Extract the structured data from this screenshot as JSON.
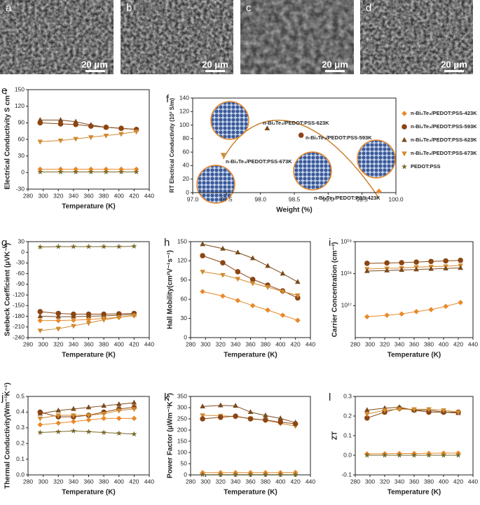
{
  "images": [
    {
      "label": "a",
      "scale": "20 μm"
    },
    {
      "label": "b",
      "scale": "20 μm"
    },
    {
      "label": "c",
      "scale": "20 μm"
    },
    {
      "label": "d",
      "scale": "20 μm"
    }
  ],
  "chart_data": [
    {
      "type": "line",
      "panel": "e",
      "xlabel": "Temperature (K)",
      "ylabel": "Electrical Conductivity S cm⁻¹",
      "xlim": [
        280,
        440
      ],
      "xticks": [
        280,
        300,
        320,
        340,
        360,
        380,
        400,
        420,
        440
      ],
      "ylim": [
        -30,
        150
      ],
      "yticks": [
        -30,
        0,
        30,
        60,
        90,
        120,
        150
      ],
      "series": [
        {
          "color": "#7a4a1c",
          "marker": "triangle",
          "x": [
            296,
            323,
            343,
            363,
            383,
            403,
            423
          ],
          "values": [
            95,
            95,
            92,
            86,
            82,
            80,
            78
          ]
        },
        {
          "color": "#8b4513",
          "marker": "circle",
          "x": [
            296,
            323,
            343,
            363,
            383,
            403,
            423
          ],
          "values": [
            90,
            88,
            87,
            84,
            82,
            80,
            78
          ]
        },
        {
          "color": "#d08a30",
          "marker": "tri-down",
          "x": [
            296,
            323,
            343,
            363,
            383,
            403,
            423
          ],
          "values": [
            56,
            58,
            61,
            64,
            67,
            70,
            74
          ]
        },
        {
          "color": "#e8892a",
          "marker": "diamond",
          "x": [
            296,
            323,
            343,
            363,
            383,
            403,
            423
          ],
          "values": [
            6,
            6,
            6,
            6,
            6,
            6,
            6
          ]
        },
        {
          "color": "#7a6a2a",
          "marker": "star",
          "x": [
            296,
            323,
            343,
            363,
            383,
            403,
            423
          ],
          "values": [
            1,
            1,
            1,
            1,
            1,
            1,
            1
          ]
        }
      ]
    },
    {
      "type": "scatter",
      "panel": "f",
      "xlabel": "Weight (%)",
      "ylabel": "RT Electrical Conductivity (10² S/m)",
      "xlim": [
        97,
        100
      ],
      "xticks": [
        {
          "value": 97,
          "label": "97.0"
        },
        {
          "value": 97.5,
          "label": "97.5"
        },
        {
          "value": 98,
          "label": "98.0"
        },
        {
          "value": 98.5,
          "label": "98.5"
        },
        {
          "value": 99,
          "label": "99.0"
        },
        {
          "value": 99.5,
          "label": "99.5"
        },
        {
          "value": 100,
          "label": "100.0"
        }
      ],
      "ylim": [
        0,
        140
      ],
      "yticks": [
        0,
        20,
        40,
        60,
        80,
        100,
        120,
        140
      ],
      "legend": "right",
      "annotations": [
        "n-Bi₂Te₃/PEDOT:PSS-623K",
        "n-Bi₂Te₃/PEDOT:PSS-593K",
        "n-Bi₂Te₃/PEDOT:PSS-673K",
        "n-Bi₂Te₃/PEDOT:PSS-423K"
      ],
      "series": [
        {
          "name": "n-Bi₂Te₃/PEDOT:PSS-423K",
          "color": "#e8892a",
          "marker": "diamond",
          "x": [
            99.75
          ],
          "values": [
            2
          ]
        },
        {
          "name": "n-Bi₂Te₃/PEDOT:PSS-593K",
          "color": "#8b4513",
          "marker": "circle",
          "x": [
            98.6
          ],
          "values": [
            85
          ]
        },
        {
          "name": "n-Bi₂Te₃/PEDOT:PSS-623K",
          "color": "#7a4a1c",
          "marker": "triangle",
          "x": [
            98.1
          ],
          "values": [
            95
          ]
        },
        {
          "name": "n-Bi₂Te₃/PEDOT:PSS-673K",
          "color": "#d08a30",
          "marker": "tri-down",
          "x": [
            97.45
          ],
          "values": [
            56
          ]
        },
        {
          "name": "PEDOT:PSS",
          "color": "#7a6a2a",
          "marker": "star",
          "x": [],
          "values": []
        }
      ]
    },
    {
      "type": "line",
      "panel": "g",
      "xlabel": "Temperature (K)",
      "ylabel": "Seebeck Coefficient (μVK⁻¹)",
      "xlim": [
        280,
        440
      ],
      "xticks": [
        280,
        300,
        320,
        340,
        360,
        380,
        400,
        420,
        440
      ],
      "ylim": [
        -240,
        30
      ],
      "yticks": [
        -240,
        -210,
        -180,
        -150,
        -120,
        -90,
        -60,
        -30,
        0,
        30
      ],
      "series": [
        {
          "color": "#7a6a2a",
          "marker": "star",
          "x": [
            296,
            320,
            340,
            360,
            380,
            400,
            420
          ],
          "values": [
            15,
            16,
            16,
            16,
            16,
            16,
            17
          ]
        },
        {
          "color": "#8b4513",
          "marker": "circle",
          "x": [
            296,
            320,
            340,
            360,
            380,
            400,
            420
          ],
          "values": [
            -167,
            -172,
            -174,
            -174,
            -174,
            -173,
            -172
          ]
        },
        {
          "color": "#7a4a1c",
          "marker": "triangle",
          "x": [
            296,
            320,
            340,
            360,
            380,
            400,
            420
          ],
          "values": [
            -180,
            -181,
            -181,
            -180,
            -179,
            -177,
            -175
          ]
        },
        {
          "color": "#e8892a",
          "marker": "diamond",
          "x": [
            296,
            320,
            340,
            360,
            380,
            400,
            420
          ],
          "values": [
            -192,
            -192,
            -191,
            -189,
            -186,
            -183,
            -178
          ]
        },
        {
          "color": "#d08a30",
          "marker": "tri-down",
          "x": [
            296,
            320,
            340,
            360,
            380,
            400,
            420
          ],
          "values": [
            -220,
            -215,
            -207,
            -199,
            -190,
            -183,
            -178
          ]
        }
      ]
    },
    {
      "type": "line",
      "panel": "h",
      "xlabel": "Temperature (K)",
      "ylabel": "Hall Mobility(cm²V⁻¹s⁻¹)",
      "xlim": [
        280,
        440
      ],
      "xticks": [
        280,
        300,
        320,
        340,
        360,
        380,
        400,
        420,
        440
      ],
      "ylim": [
        0,
        150
      ],
      "yticks": [
        0,
        30,
        60,
        90,
        120,
        150
      ],
      "series": [
        {
          "color": "#7a4a1c",
          "marker": "triangle",
          "x": [
            296,
            323,
            343,
            363,
            383,
            403,
            423
          ],
          "values": [
            146,
            139,
            133,
            124,
            112,
            100,
            87
          ]
        },
        {
          "color": "#8b4513",
          "marker": "circle",
          "x": [
            296,
            323,
            343,
            363,
            383,
            403,
            423
          ],
          "values": [
            128,
            117,
            103,
            91,
            82,
            73,
            62
          ]
        },
        {
          "color": "#d08a30",
          "marker": "tri-down",
          "x": [
            296,
            323,
            343,
            363,
            383,
            403,
            423
          ],
          "values": [
            103,
            98,
            92,
            85,
            79,
            72,
            66
          ]
        },
        {
          "color": "#e8892a",
          "marker": "diamond",
          "x": [
            296,
            323,
            343,
            363,
            383,
            403,
            423
          ],
          "values": [
            72,
            65,
            58,
            50,
            43,
            35,
            27
          ]
        }
      ]
    },
    {
      "type": "line",
      "panel": "i",
      "xlabel": "Temperature (K)",
      "ylabel": "Carrier Concentration (cm⁻³)",
      "xlim": [
        280,
        440
      ],
      "xticks": [
        280,
        300,
        320,
        340,
        360,
        380,
        400,
        420,
        440
      ],
      "ylim": [
        1e+16,
        1e+19
      ],
      "log_y": true,
      "yticks": [
        {
          "value": 1e+17,
          "label": "10¹⁷"
        },
        {
          "value": 1e+18,
          "label": "10¹⁸"
        },
        {
          "value": 1e+19,
          "label": "10¹⁹"
        }
      ],
      "series": [
        {
          "color": "#8b4513",
          "marker": "circle",
          "x": [
            296,
            323,
            343,
            363,
            383,
            403,
            423
          ],
          "values": [
            2.1e+18,
            2.15e+18,
            2.2e+18,
            2.3e+18,
            2.4e+18,
            2.5e+18,
            2.6e+18
          ]
        },
        {
          "color": "#d08a30",
          "marker": "tri-down",
          "x": [
            296,
            323,
            343,
            363,
            383,
            403,
            423
          ],
          "values": [
            1.4e+18,
            1.45e+18,
            1.5e+18,
            1.6e+18,
            1.65e+18,
            1.7e+18,
            1.8e+18
          ]
        },
        {
          "color": "#7a4a1c",
          "marker": "triangle",
          "x": [
            296,
            323,
            343,
            363,
            383,
            403,
            423
          ],
          "values": [
            1.2e+18,
            1.25e+18,
            1.3e+18,
            1.35e+18,
            1.4e+18,
            1.45e+18,
            1.5e+18
          ]
        },
        {
          "color": "#e8892a",
          "marker": "diamond",
          "x": [
            296,
            323,
            343,
            363,
            383,
            403,
            423
          ],
          "values": [
            4.5e+16,
            5e+16,
            5.5e+16,
            6.5e+16,
            7.5e+16,
            9.5e+16,
            1.25e+17
          ]
        }
      ]
    },
    {
      "type": "line",
      "panel": "j",
      "xlabel": "Temperature (K)",
      "ylabel": "Thermal Conductivity(Wm⁻¹K⁻¹)",
      "xlim": [
        280,
        440
      ],
      "xticks": [
        280,
        300,
        320,
        340,
        360,
        380,
        400,
        420,
        440
      ],
      "ylim": [
        0,
        0.5
      ],
      "yticks": [
        {
          "value": 0,
          "label": "0.0"
        },
        0.1,
        0.2,
        0.3,
        0.4,
        0.5
      ],
      "series": [
        {
          "color": "#7a4a1c",
          "marker": "triangle",
          "x": [
            296,
            320,
            340,
            360,
            380,
            400,
            420
          ],
          "values": [
            0.39,
            0.41,
            0.42,
            0.43,
            0.44,
            0.45,
            0.46
          ]
        },
        {
          "color": "#8b4513",
          "marker": "circle",
          "x": [
            296,
            320,
            340,
            360,
            380,
            400,
            420
          ],
          "values": [
            0.4,
            0.37,
            0.37,
            0.38,
            0.4,
            0.42,
            0.43
          ]
        },
        {
          "color": "#d08a30",
          "marker": "tri-down",
          "x": [
            296,
            320,
            340,
            360,
            380,
            400,
            420
          ],
          "values": [
            0.36,
            0.38,
            0.38,
            0.38,
            0.39,
            0.41,
            0.42
          ]
        },
        {
          "color": "#e8892a",
          "marker": "diamond",
          "x": [
            296,
            320,
            340,
            360,
            380,
            400,
            420
          ],
          "values": [
            0.32,
            0.33,
            0.34,
            0.35,
            0.36,
            0.36,
            0.36
          ]
        },
        {
          "color": "#7a6a2a",
          "marker": "star",
          "x": [
            296,
            320,
            340,
            360,
            380,
            400,
            420
          ],
          "values": [
            0.27,
            0.275,
            0.28,
            0.275,
            0.27,
            0.265,
            0.26
          ]
        }
      ]
    },
    {
      "type": "line",
      "panel": "k",
      "xlabel": "Temperature (K)",
      "ylabel": "Power Factor (μWm⁻¹K⁻¹)",
      "xlim": [
        280,
        440
      ],
      "xticks": [
        280,
        300,
        320,
        340,
        360,
        380,
        400,
        420,
        440
      ],
      "ylim": [
        0,
        350
      ],
      "yticks": [
        0,
        50,
        100,
        150,
        200,
        250,
        300,
        350
      ],
      "series": [
        {
          "color": "#7a4a1c",
          "marker": "triangle",
          "x": [
            296,
            320,
            340,
            360,
            380,
            400,
            420
          ],
          "values": [
            305,
            310,
            308,
            280,
            265,
            252,
            233
          ]
        },
        {
          "color": "#d08a30",
          "marker": "tri-down",
          "x": [
            296,
            320,
            340,
            360,
            380,
            400,
            420
          ],
          "values": [
            266,
            264,
            260,
            252,
            244,
            230,
            218
          ]
        },
        {
          "color": "#8b4513",
          "marker": "circle",
          "x": [
            296,
            320,
            340,
            360,
            380,
            400,
            420
          ],
          "values": [
            250,
            257,
            262,
            250,
            245,
            235,
            228
          ]
        },
        {
          "color": "#e8892a",
          "marker": "diamond",
          "x": [
            296,
            320,
            340,
            360,
            380,
            400,
            420
          ],
          "values": [
            10,
            10,
            10,
            10,
            10,
            10,
            11
          ]
        },
        {
          "color": "#7a6a2a",
          "marker": "star",
          "x": [
            296,
            320,
            340,
            360,
            380,
            400,
            420
          ],
          "values": [
            1,
            1,
            1,
            1,
            1,
            1,
            1
          ]
        }
      ]
    },
    {
      "type": "line",
      "panel": "l",
      "xlabel": "Temperature (K)",
      "ylabel": "ZT",
      "xlim": [
        280,
        440
      ],
      "xticks": [
        280,
        300,
        320,
        340,
        360,
        380,
        400,
        420,
        440
      ],
      "ylim": [
        -0.1,
        0.3
      ],
      "yticks": [
        -0.1,
        {
          "value": 0,
          "label": "0.0"
        },
        0.1,
        0.2,
        0.3
      ],
      "series": [
        {
          "color": "#8b4513",
          "marker": "circle",
          "x": [
            296,
            320,
            340,
            360,
            380,
            400,
            420
          ],
          "values": [
            0.19,
            0.22,
            0.24,
            0.23,
            0.22,
            0.22,
            0.22
          ]
        },
        {
          "color": "#7a4a1c",
          "marker": "triangle",
          "x": [
            296,
            320,
            340,
            360,
            380,
            400,
            420
          ],
          "values": [
            0.23,
            0.24,
            0.245,
            0.23,
            0.23,
            0.22,
            0.215
          ]
        },
        {
          "color": "#d08a30",
          "marker": "tri-down",
          "x": [
            296,
            320,
            340,
            360,
            380,
            400,
            420
          ],
          "values": [
            0.21,
            0.23,
            0.235,
            0.235,
            0.235,
            0.23,
            0.22
          ]
        },
        {
          "color": "#e8892a",
          "marker": "diamond",
          "x": [
            296,
            320,
            340,
            360,
            380,
            400,
            420
          ],
          "values": [
            0.007,
            0.008,
            0.009,
            0.009,
            0.01,
            0.011,
            0.011
          ]
        },
        {
          "color": "#7a6a2a",
          "marker": "star",
          "x": [
            296,
            320,
            340,
            360,
            380,
            400,
            420
          ],
          "values": [
            0,
            0,
            0,
            0,
            0,
            0,
            0
          ]
        }
      ]
    }
  ]
}
